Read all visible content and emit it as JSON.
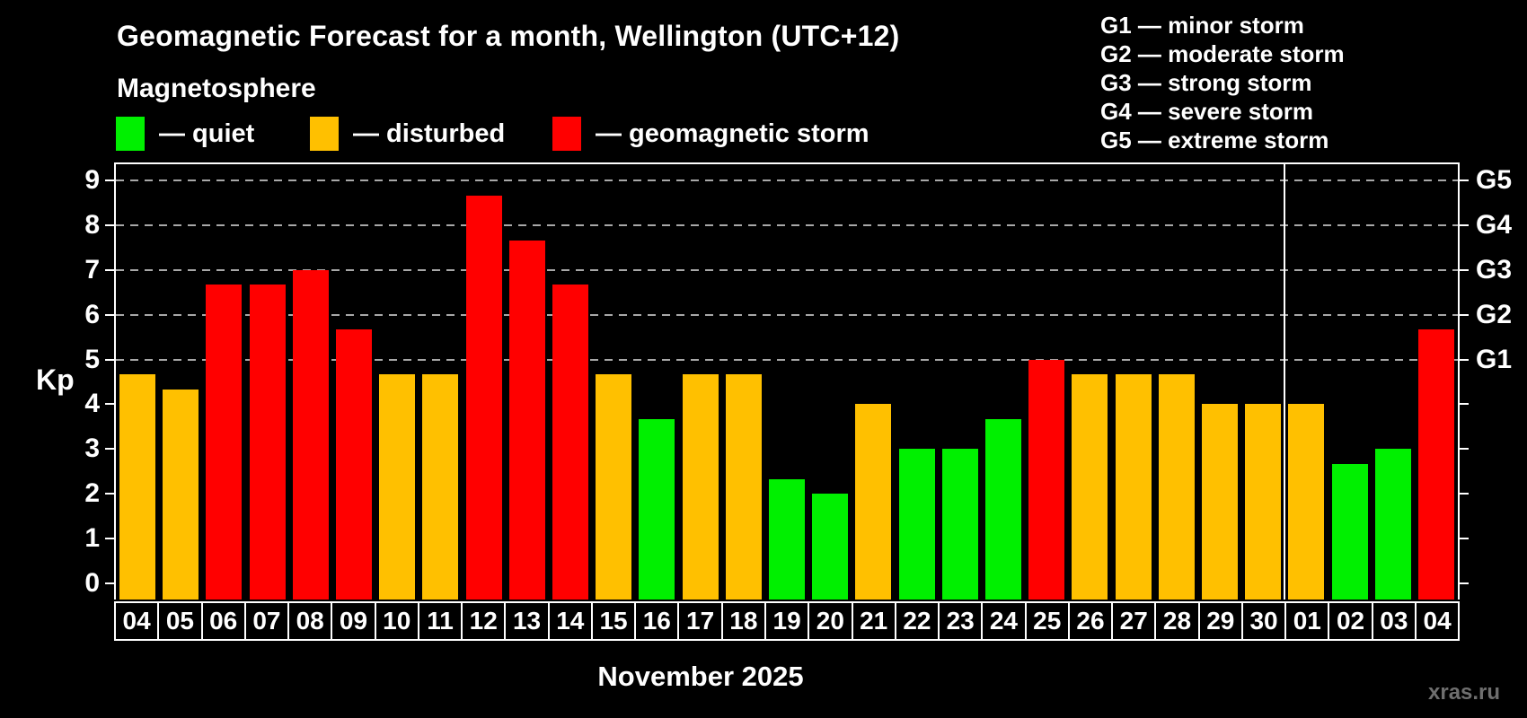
{
  "title": "Geomagnetic Forecast for a month, Wellington (UTC+12)",
  "subtitle": "Magnetosphere",
  "legend": {
    "items": [
      {
        "label": "— quiet",
        "status": "quiet"
      },
      {
        "label": "— disturbed",
        "status": "disturbed"
      },
      {
        "label": "— geomagnetic storm",
        "status": "storm"
      }
    ]
  },
  "g_scale_legend": {
    "items": [
      "G1 — minor storm",
      "G2 — moderate storm",
      "G3 — strong storm",
      "G4 — severe storm",
      "G5 — extreme storm"
    ]
  },
  "colors": {
    "quiet": "#00f000",
    "disturbed": "#ffc000",
    "storm": "#ff0000",
    "axis": "#ffffff",
    "grid": "#a8a8a8",
    "background": "#000000",
    "watermark": "#6f6f6f"
  },
  "y_axis": {
    "label": "Kp",
    "ticks": [
      0,
      1,
      2,
      3,
      4,
      5,
      6,
      7,
      8,
      9
    ]
  },
  "right_axis": {
    "labels": [
      {
        "text": "G1",
        "kp": 5
      },
      {
        "text": "G2",
        "kp": 6
      },
      {
        "text": "G3",
        "kp": 7
      },
      {
        "text": "G4",
        "kp": 8
      },
      {
        "text": "G5",
        "kp": 9
      }
    ]
  },
  "x_axis": {
    "month_label": "November 2025"
  },
  "watermark": "xras.ru",
  "chart_data": {
    "type": "bar",
    "title": "Geomagnetic Forecast for a month, Wellington (UTC+12)",
    "xlabel": "November 2025",
    "ylabel": "Kp",
    "ylim": [
      0,
      9
    ],
    "grid_levels": [
      5,
      6,
      7,
      8,
      9
    ],
    "legend_position": "top",
    "month_separator_after_index": 26,
    "categories": [
      "04",
      "05",
      "06",
      "07",
      "08",
      "09",
      "10",
      "11",
      "12",
      "13",
      "14",
      "15",
      "16",
      "17",
      "18",
      "19",
      "20",
      "21",
      "22",
      "23",
      "24",
      "25",
      "26",
      "27",
      "28",
      "29",
      "30",
      "01",
      "02",
      "03",
      "04"
    ],
    "values": [
      4.67,
      4.33,
      6.67,
      6.67,
      7.0,
      5.67,
      4.67,
      4.67,
      8.67,
      7.67,
      6.67,
      4.67,
      3.67,
      4.67,
      4.67,
      2.33,
      2.0,
      4.0,
      3.0,
      3.0,
      3.67,
      5.0,
      4.67,
      4.67,
      4.67,
      4.0,
      4.0,
      4.0,
      2.67,
      3.0,
      5.67
    ],
    "statuses": [
      "disturbed",
      "disturbed",
      "storm",
      "storm",
      "storm",
      "storm",
      "disturbed",
      "disturbed",
      "storm",
      "storm",
      "storm",
      "disturbed",
      "quiet",
      "disturbed",
      "disturbed",
      "quiet",
      "quiet",
      "disturbed",
      "quiet",
      "quiet",
      "quiet",
      "storm",
      "disturbed",
      "disturbed",
      "disturbed",
      "disturbed",
      "disturbed",
      "disturbed",
      "quiet",
      "quiet",
      "storm"
    ]
  }
}
